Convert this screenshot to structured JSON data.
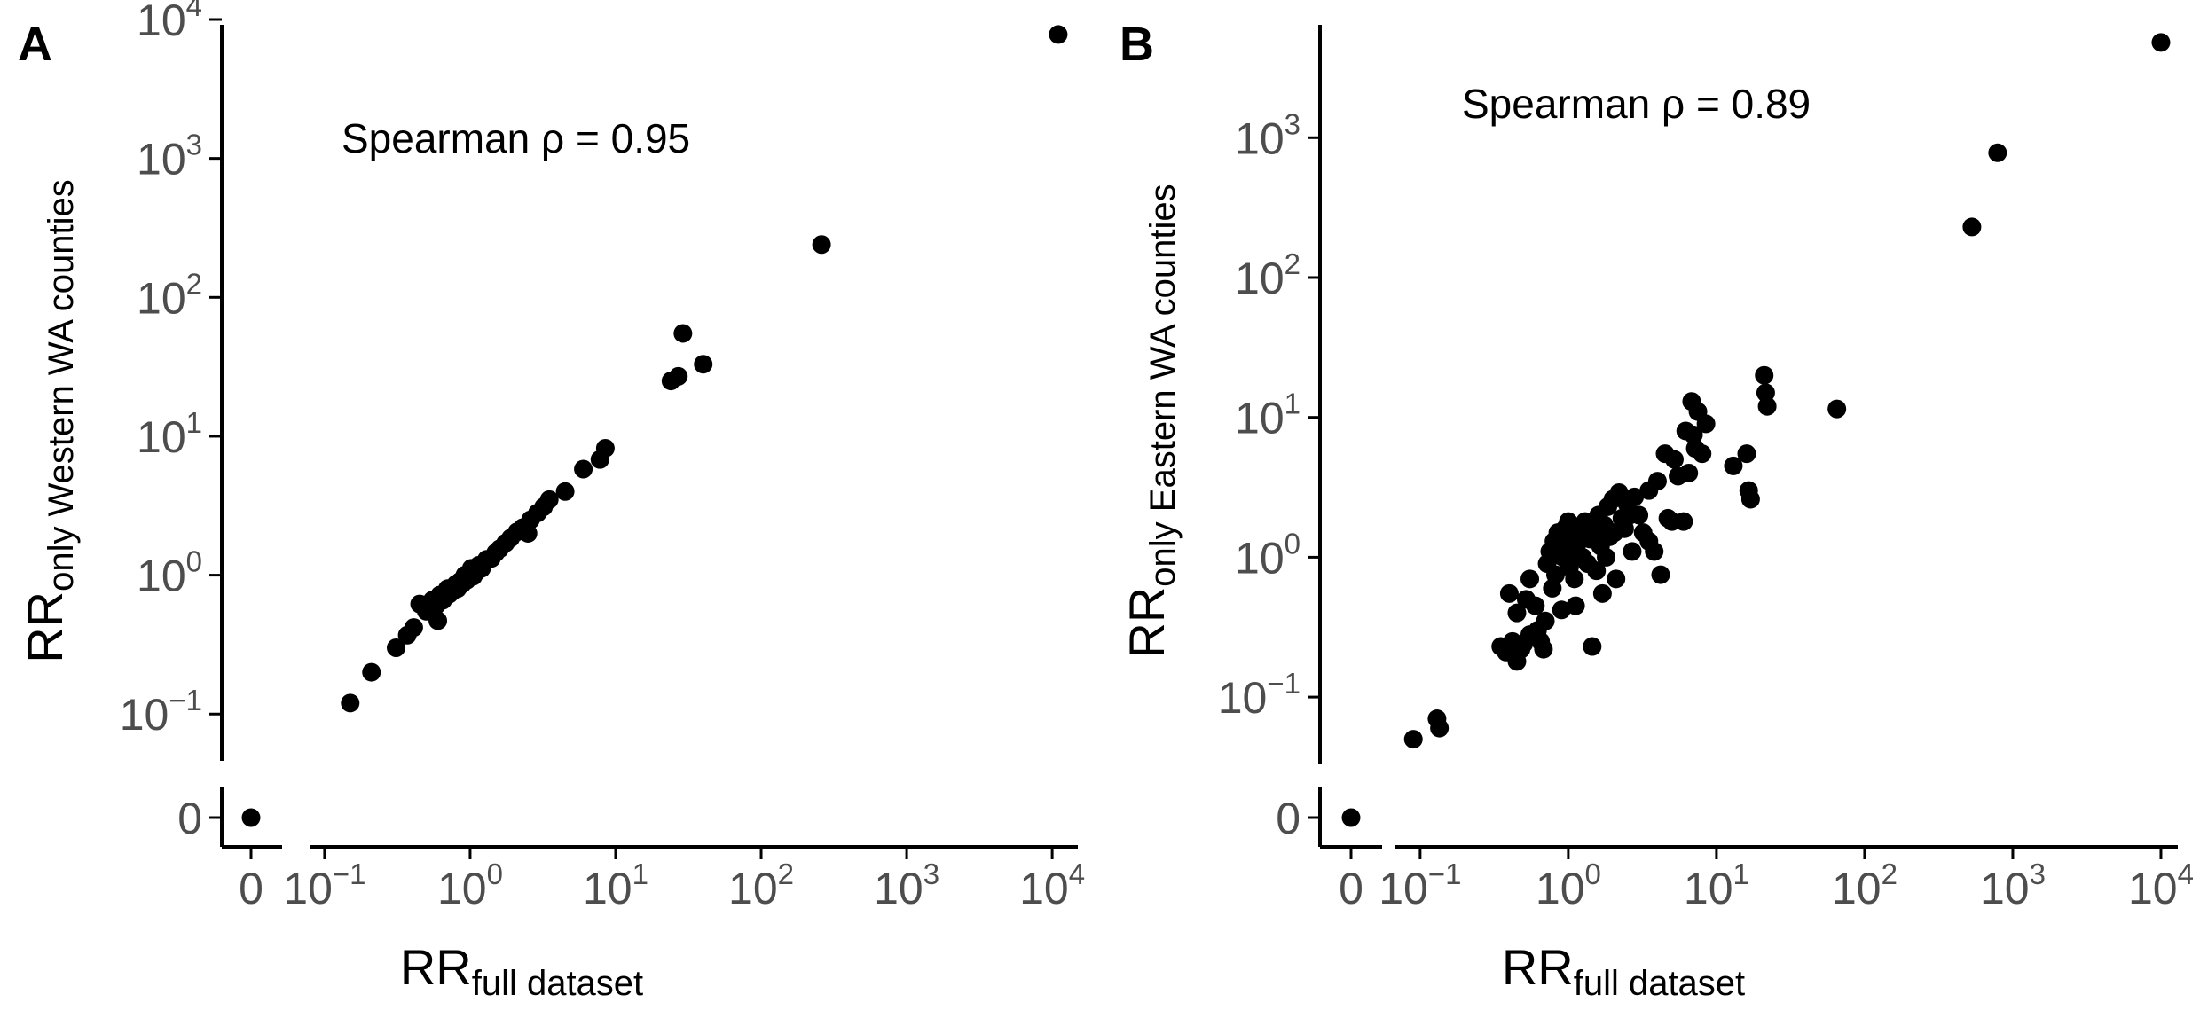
{
  "chart_data": [
    {
      "type": "scatter",
      "panel_label": "A",
      "annotation": "Spearman ρ = 0.95",
      "xlabel": {
        "main": "RR",
        "sub": "full dataset"
      },
      "ylabel": {
        "main": "RR",
        "sub": "only Western WA counties"
      },
      "x_scale": "log10 with separate zero bin",
      "y_scale": "log10 with separate zero bin",
      "xlim": [
        0.08,
        15000
      ],
      "ylim": [
        0.06,
        10000
      ],
      "x_ticks": [
        {
          "base": "10",
          "exp": "−1",
          "value": 0.1
        },
        {
          "base": "10",
          "exp": "0",
          "value": 1
        },
        {
          "base": "10",
          "exp": "1",
          "value": 10
        },
        {
          "base": "10",
          "exp": "2",
          "value": 100
        },
        {
          "base": "10",
          "exp": "3",
          "value": 1000
        },
        {
          "base": "10",
          "exp": "4",
          "value": 10000
        }
      ],
      "y_ticks": [
        {
          "base": "10",
          "exp": "−1",
          "value": 0.1
        },
        {
          "base": "10",
          "exp": "0",
          "value": 1
        },
        {
          "base": "10",
          "exp": "1",
          "value": 10
        },
        {
          "base": "10",
          "exp": "2",
          "value": 100
        },
        {
          "base": "10",
          "exp": "3",
          "value": 1000
        },
        {
          "base": "10",
          "exp": "4",
          "value": 10000
        }
      ],
      "zero_label": "0",
      "grid": false,
      "point_color": "#000000",
      "points": [
        [
          0,
          0
        ],
        [
          0.15,
          0.12
        ],
        [
          0.21,
          0.2
        ],
        [
          0.31,
          0.3
        ],
        [
          0.37,
          0.37
        ],
        [
          0.41,
          0.42
        ],
        [
          0.45,
          0.62
        ],
        [
          0.5,
          0.55
        ],
        [
          0.55,
          0.66
        ],
        [
          0.58,
          0.6
        ],
        [
          0.6,
          0.47
        ],
        [
          0.62,
          0.72
        ],
        [
          0.65,
          0.66
        ],
        [
          0.68,
          0.7
        ],
        [
          0.7,
          0.8
        ],
        [
          0.72,
          0.73
        ],
        [
          0.75,
          0.76
        ],
        [
          0.78,
          0.82
        ],
        [
          0.8,
          0.86
        ],
        [
          0.82,
          0.8
        ],
        [
          0.85,
          0.9
        ],
        [
          0.88,
          0.86
        ],
        [
          0.9,
          0.95
        ],
        [
          0.92,
          1.0
        ],
        [
          0.95,
          0.92
        ],
        [
          1.0,
          1.05
        ],
        [
          1.02,
          1.12
        ],
        [
          1.05,
          0.98
        ],
        [
          1.1,
          1.05
        ],
        [
          1.15,
          1.18
        ],
        [
          1.2,
          1.12
        ],
        [
          1.3,
          1.3
        ],
        [
          1.4,
          1.32
        ],
        [
          1.5,
          1.45
        ],
        [
          1.6,
          1.55
        ],
        [
          1.75,
          1.7
        ],
        [
          1.9,
          1.85
        ],
        [
          2.1,
          2.05
        ],
        [
          2.3,
          2.2
        ],
        [
          2.5,
          2.0
        ],
        [
          2.6,
          2.5
        ],
        [
          2.9,
          2.8
        ],
        [
          3.2,
          3.1
        ],
        [
          3.5,
          3.5
        ],
        [
          4.5,
          4.0
        ],
        [
          6.0,
          5.8
        ],
        [
          7.8,
          6.8
        ],
        [
          8.5,
          8.2
        ],
        [
          24,
          25
        ],
        [
          27,
          27
        ],
        [
          29,
          55
        ],
        [
          40,
          33
        ],
        [
          260,
          240
        ],
        [
          11000,
          7800
        ]
      ]
    },
    {
      "type": "scatter",
      "panel_label": "B",
      "annotation": "Spearman ρ = 0.89",
      "xlabel": {
        "main": "RR",
        "sub": "full dataset"
      },
      "ylabel": {
        "main": "RR",
        "sub": "only Eastern WA counties"
      },
      "x_scale": "log10 with separate zero bin",
      "y_scale": "log10 with separate zero bin",
      "xlim": [
        0.07,
        13000
      ],
      "ylim": [
        0.035,
        7000
      ],
      "x_ticks": [
        {
          "base": "10",
          "exp": "−1",
          "value": 0.1
        },
        {
          "base": "10",
          "exp": "0",
          "value": 1
        },
        {
          "base": "10",
          "exp": "1",
          "value": 10
        },
        {
          "base": "10",
          "exp": "2",
          "value": 100
        },
        {
          "base": "10",
          "exp": "3",
          "value": 1000
        },
        {
          "base": "10",
          "exp": "4",
          "value": 10000
        }
      ],
      "y_ticks": [
        {
          "base": "10",
          "exp": "−1",
          "value": 0.1
        },
        {
          "base": "10",
          "exp": "0",
          "value": 1
        },
        {
          "base": "10",
          "exp": "1",
          "value": 10
        },
        {
          "base": "10",
          "exp": "2",
          "value": 100
        },
        {
          "base": "10",
          "exp": "3",
          "value": 1000
        }
      ],
      "zero_label": "0",
      "grid": false,
      "point_color": "#000000",
      "points": [
        [
          0,
          0
        ],
        [
          0.09,
          0.05
        ],
        [
          0.13,
          0.07
        ],
        [
          0.135,
          0.06
        ],
        [
          0.35,
          0.23
        ],
        [
          0.38,
          0.21
        ],
        [
          0.4,
          0.55
        ],
        [
          0.42,
          0.25
        ],
        [
          0.45,
          0.18
        ],
        [
          0.45,
          0.4
        ],
        [
          0.48,
          0.22
        ],
        [
          0.5,
          0.24
        ],
        [
          0.52,
          0.5
        ],
        [
          0.55,
          0.7
        ],
        [
          0.55,
          0.28
        ],
        [
          0.6,
          0.45
        ],
        [
          0.62,
          0.3
        ],
        [
          0.65,
          0.25
        ],
        [
          0.68,
          0.22
        ],
        [
          0.7,
          0.35
        ],
        [
          0.72,
          0.9
        ],
        [
          0.75,
          1.1
        ],
        [
          0.78,
          0.6
        ],
        [
          0.8,
          1.3
        ],
        [
          0.82,
          0.75
        ],
        [
          0.85,
          1.5
        ],
        [
          0.88,
          1.2
        ],
        [
          0.9,
          0.42
        ],
        [
          0.92,
          1.0
        ],
        [
          0.95,
          1.6
        ],
        [
          1.0,
          1.8
        ],
        [
          1.02,
          0.85
        ],
        [
          1.05,
          1.1
        ],
        [
          1.08,
          1.4
        ],
        [
          1.1,
          0.7
        ],
        [
          1.12,
          0.45
        ],
        [
          1.15,
          1.25
        ],
        [
          1.2,
          1.6
        ],
        [
          1.25,
          1.0
        ],
        [
          1.3,
          1.8
        ],
        [
          1.35,
          0.9
        ],
        [
          1.4,
          1.35
        ],
        [
          1.45,
          0.23
        ],
        [
          1.5,
          1.5
        ],
        [
          1.55,
          0.8
        ],
        [
          1.6,
          2.0
        ],
        [
          1.65,
          1.2
        ],
        [
          1.7,
          0.55
        ],
        [
          1.75,
          1.7
        ],
        [
          1.8,
          1.0
        ],
        [
          1.85,
          2.3
        ],
        [
          1.9,
          1.4
        ],
        [
          2.0,
          2.6
        ],
        [
          2.05,
          1.5
        ],
        [
          2.1,
          0.7
        ],
        [
          2.2,
          2.9
        ],
        [
          2.3,
          1.9
        ],
        [
          2.4,
          1.6
        ],
        [
          2.5,
          2.4
        ],
        [
          2.6,
          2.0
        ],
        [
          2.7,
          1.1
        ],
        [
          2.8,
          2.7
        ],
        [
          3.0,
          2.0
        ],
        [
          3.2,
          1.5
        ],
        [
          3.5,
          1.3
        ],
        [
          3.5,
          3.0
        ],
        [
          3.8,
          1.1
        ],
        [
          4.0,
          3.5
        ],
        [
          4.2,
          0.75
        ],
        [
          4.5,
          5.5
        ],
        [
          4.7,
          1.9
        ],
        [
          5.0,
          1.8
        ],
        [
          5.2,
          5.0
        ],
        [
          5.5,
          3.8
        ],
        [
          6.0,
          1.8
        ],
        [
          6.2,
          8.0
        ],
        [
          6.5,
          4.0
        ],
        [
          6.8,
          13
        ],
        [
          7.0,
          7.5
        ],
        [
          7.2,
          6.0
        ],
        [
          7.5,
          11
        ],
        [
          8.0,
          5.5
        ],
        [
          8.5,
          9.0
        ],
        [
          13,
          4.5
        ],
        [
          16,
          5.5
        ],
        [
          16.5,
          3.0
        ],
        [
          17,
          2.6
        ],
        [
          21,
          20
        ],
        [
          21.5,
          15
        ],
        [
          22,
          12
        ],
        [
          65,
          11.5
        ],
        [
          530,
          230
        ],
        [
          790,
          780
        ],
        [
          10000,
          4800
        ]
      ]
    }
  ]
}
